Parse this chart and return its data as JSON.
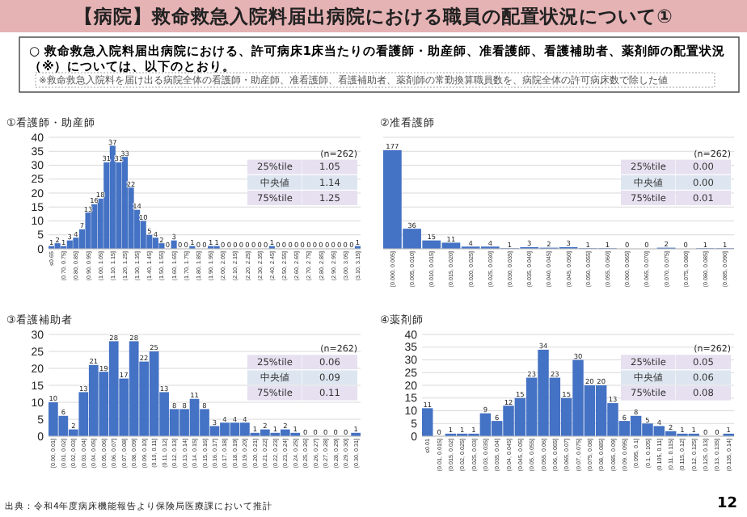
{
  "chart_data": [
    {
      "type": "other",
      "title": "【病院】救命救急入院料届出病院における職員の配置状況について①",
      "annotations": [
        "○ 救命救急入院料届出病院における、許可病床1床当たりの看護師・助産師、准看護師、看護補助者、薬剤師の配置状況（※）については、以下のとおり。",
        "※救命救急入院料を届け出る病院全体の看護師・助産師、准看護師、看護補助者、薬剤師の常勤換算職員数を、病院全体の許可病床数で除した値",
        "出典：令和4年度病床機能報告より保険局医療課において推計",
        "12"
      ]
    },
    {
      "type": "bar",
      "title": "①看護師・助産師",
      "color": "#4472c4",
      "data_labels": true,
      "grid": "y",
      "ylim": [
        0,
        40
      ],
      "yticks": [
        0,
        5,
        10,
        15,
        20,
        25,
        30,
        35,
        40
      ],
      "categories": [
        "≤0.65",
        null,
        "(0.70, 0.75]",
        null,
        "(0.80, 0.85]",
        null,
        "(0.90, 0.95]",
        null,
        "(1.00, 1.05]",
        null,
        "(1.10, 1.15]",
        null,
        "(1.20, 1.25]",
        null,
        "(1.30, 1.35]",
        null,
        "(1.40, 1.45]",
        null,
        "(1.50, 1.55]",
        null,
        "(1.60, 1.65]",
        null,
        "(1.70, 1.75]",
        null,
        "(1.80, 1.85]",
        null,
        "(1.90, 1.95]",
        null,
        "(2.00, 2.05]",
        null,
        "(2.10, 2.15]",
        null,
        "(2.20, 2.25]",
        null,
        "(2.30, 2.35]",
        null,
        "(2.40, 2.45]",
        null,
        "(2.50, 2.55]",
        null,
        "(2.60, 2.65]",
        null,
        "(2.70, 2.75]",
        null,
        "(2.80, 2.85]",
        null,
        "(2.90, 2.95]",
        null,
        "(3.00, 3.05]",
        null,
        "(3.10, 3.15]"
      ],
      "values": [
        1,
        2,
        1,
        3,
        4,
        7,
        13,
        16,
        18,
        31,
        37,
        31,
        33,
        22,
        14,
        10,
        5,
        4,
        2,
        0,
        3,
        0,
        0,
        1,
        0,
        0,
        1,
        1,
        0,
        0,
        0,
        0,
        0,
        0,
        0,
        0,
        1,
        0,
        0,
        0,
        0,
        0,
        0,
        0,
        0,
        0,
        0,
        0,
        0,
        0,
        1
      ],
      "annotations": [
        "(n=262)",
        "25%tile",
        "1.05",
        "中央値",
        "1.14",
        "75%tile",
        "1.25"
      ]
    },
    {
      "type": "bar",
      "title": "②准看護師",
      "color": "#4472c4",
      "data_labels": true,
      "grid": "y",
      "tick_labels": "x",
      "ylim": [
        0,
        200
      ],
      "yticks": [
        {
          "value": 0,
          "label": null
        },
        {
          "value": 25,
          "label": null
        },
        {
          "value": 50,
          "label": null
        },
        {
          "value": 75,
          "label": null
        },
        {
          "value": 100,
          "label": null
        },
        {
          "value": 125,
          "label": null
        },
        {
          "value": 150,
          "label": null
        },
        {
          "value": 175,
          "label": null
        },
        {
          "value": 200,
          "label": null
        }
      ],
      "categories": [
        "[0.000, 0.005]",
        "(0.005, 0.010]",
        "(0.010, 0.015]",
        "(0.015, 0.020]",
        "(0.020, 0.025]",
        "(0.025, 0.030]",
        "(0.030, 0.035]",
        "(0.035, 0.040]",
        "(0.040, 0.045]",
        "(0.045, 0.050]",
        "(0.050, 0.055]",
        "(0.055, 0.060]",
        "(0.060, 0.065]",
        "(0.065, 0.070]",
        "(0.070, 0.075]",
        "(0.075, 0.080]",
        "(0.080, 0.085]",
        "(0.085, 0.090]"
      ],
      "values": [
        177,
        36,
        15,
        11,
        4,
        4,
        1,
        3,
        2,
        3,
        1,
        1,
        0,
        0,
        2,
        0,
        1,
        1
      ],
      "annotations": [
        "(n=262)",
        "25%tile",
        "0.00",
        "中央値",
        "0.00",
        "75%tile",
        "0.01"
      ]
    },
    {
      "type": "bar",
      "title": "③看護補助者",
      "color": "#4472c4",
      "data_labels": true,
      "grid": "y",
      "ylim": [
        0,
        30
      ],
      "yticks": [
        0,
        5,
        10,
        15,
        20,
        25,
        30
      ],
      "categories": [
        "[0.00, 0.01]",
        "(0.01, 0.02]",
        "(0.02, 0.03]",
        "(0.03, 0.04]",
        "(0.04, 0.05]",
        "(0.05, 0.06]",
        "(0.06, 0.07]",
        "(0.07, 0.08]",
        "(0.08, 0.09]",
        "(0.09, 0.10]",
        "(0.10, 0.11]",
        "(0.11, 0.12]",
        "(0.12, 0.13]",
        "(0.13, 0.14]",
        "(0.14, 0.15]",
        "(0.15, 0.16]",
        "(0.16, 0.17]",
        "(0.17, 0.18]",
        "(0.18, 0.19]",
        "(0.19, 0.20]",
        "(0.20, 0.21]",
        "(0.21, 0.22]",
        "(0.22, 0.23]",
        "(0.23, 0.24]",
        "(0.24, 0.25]",
        "(0.25, 0.26]",
        "(0.26, 0.27]",
        "(0.27, 0.28]",
        "(0.28, 0.29]",
        "(0.29, 0.30]",
        "(0.30, 0.31]"
      ],
      "values": [
        10,
        6,
        2,
        13,
        21,
        19,
        28,
        17,
        28,
        22,
        25,
        13,
        8,
        8,
        11,
        8,
        3,
        4,
        4,
        4,
        1,
        2,
        1,
        2,
        1,
        0,
        0,
        0,
        0,
        0,
        1
      ],
      "annotations": [
        "(n=262)",
        "25%tile",
        "0.06",
        "中央値",
        "0.09",
        "75%tile",
        "0.11"
      ]
    },
    {
      "type": "bar",
      "title": "④薬剤師",
      "color": "#4472c4",
      "data_labels": true,
      "grid": "y",
      "ylim": [
        0,
        40
      ],
      "yticks": [
        0,
        5,
        10,
        15,
        20,
        25,
        30,
        35,
        40
      ],
      "categories": [
        "≤0.01",
        "(0.01, 0.015]",
        "(0.015, 0.02]",
        "(0.02, 0.025]",
        "(0.025, 0.03]",
        "(0.03, 0.035]",
        "(0.035, 0.04]",
        "(0.04, 0.045]",
        "(0.045, 0.05]",
        "(0.05, 0.055]",
        "(0.055, 0.06]",
        "(0.06, 0.065]",
        "(0.065, 0.07]",
        "(0.07, 0.075]",
        "(0.075, 0.08]",
        "(0.08, 0.085]",
        "(0.085, 0.09]",
        "(0.09, 0.095]",
        "(0.095, 0.1]",
        "(0.1, 0.105]",
        "(0.105, 0.11]",
        "(0.11, 0.115]",
        "(0.115, 0.12]",
        "(0.12, 0.125]",
        "(0.125, 0.13]",
        "(0.13, 0.135]",
        "(0.135, 0.14]"
      ],
      "values": [
        11,
        0,
        1,
        1,
        1,
        9,
        6,
        12,
        15,
        23,
        34,
        23,
        15,
        30,
        20,
        20,
        13,
        6,
        8,
        5,
        4,
        2,
        1,
        1,
        0,
        0,
        1
      ],
      "annotations": [
        "(n=262)",
        "25%tile",
        "0.05",
        "中央値",
        "0.06",
        "75%tile",
        "0.08"
      ]
    }
  ]
}
